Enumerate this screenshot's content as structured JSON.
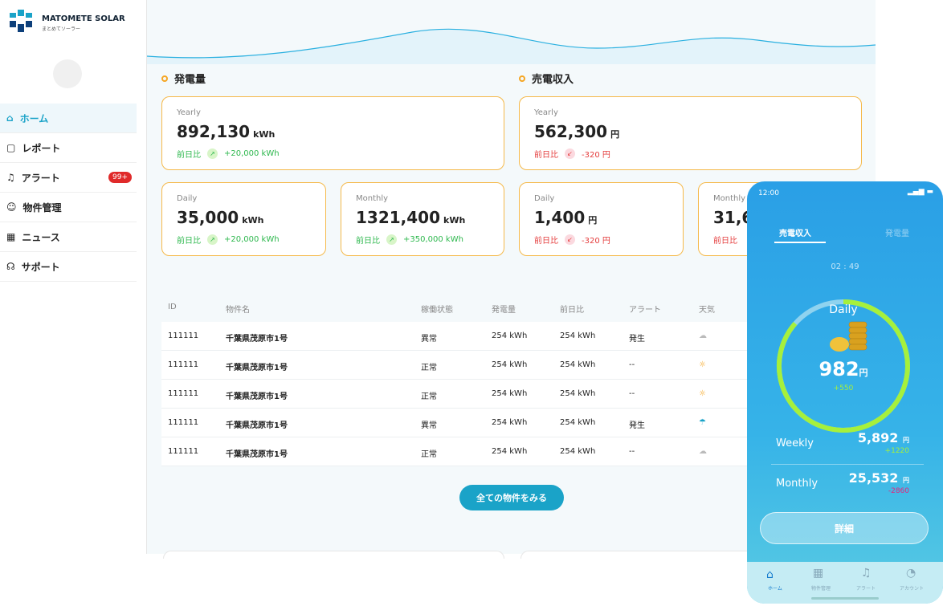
{
  "brand": {
    "name": "MATOMETE SOLAR",
    "sub": "まとめてソーラー"
  },
  "nav": [
    {
      "label": "ホーム"
    },
    {
      "label": "レポート"
    },
    {
      "label": "アラート",
      "badge": "99+"
    },
    {
      "label": "物件管理"
    },
    {
      "label": "ニュース"
    },
    {
      "label": "サポート"
    }
  ],
  "power": {
    "title": "発電量",
    "cards": [
      {
        "period": "Yearly",
        "value": "892,130",
        "unit": "kWh",
        "compare": "前日比",
        "delta": "+20,000 kWh"
      },
      {
        "period": "Daily",
        "value": "35,000",
        "unit": "kWh",
        "compare": "前日比",
        "delta": "+20,000 kWh"
      },
      {
        "period": "Monthly",
        "value": "1321,400",
        "unit": "kWh",
        "compare": "前日比",
        "delta": "+350,000 kWh"
      }
    ]
  },
  "revenue": {
    "title": "売電収入",
    "cards": [
      {
        "period": "Yearly",
        "value": "562,300",
        "unit": "円",
        "compare": "前日比",
        "delta": "-320 円"
      },
      {
        "period": "Daily",
        "value": "1,400",
        "unit": "円",
        "compare": "前日比",
        "delta": "-320 円"
      },
      {
        "period": "Monthly",
        "value": "31,6",
        "compare": "前日比"
      }
    ]
  },
  "table": {
    "columns": [
      "ID",
      "物件名",
      "稼働状態",
      "発電量",
      "前日比",
      "アラート",
      "天気"
    ],
    "rows": [
      [
        "111111",
        "千葉県茂原市1号",
        "異常",
        "254 kWh",
        "254 kWh",
        "発生"
      ],
      [
        "111111",
        "千葉県茂原市1号",
        "正常",
        "254 kWh",
        "254 kWh",
        "--"
      ],
      [
        "111111",
        "千葉県茂原市1号",
        "正常",
        "254 kWh",
        "254 kWh",
        "--"
      ],
      [
        "111111",
        "千葉県茂原市1号",
        "異常",
        "254 kWh",
        "254 kWh",
        "発生"
      ],
      [
        "111111",
        "千葉県茂原市1号",
        "正常",
        "254 kWh",
        "254 kWh",
        "--"
      ]
    ]
  },
  "button": "全ての物件をみる",
  "phone": {
    "time": "12:00",
    "tabs": [
      "売電収入",
      "発電量"
    ],
    "timer": "02 : 49",
    "daily": {
      "label": "Daily",
      "value": "982",
      "unit": "円",
      "delta": "+550"
    },
    "weekly": {
      "label": "Weekly",
      "value": "5,892",
      "unit": "円",
      "delta": "+1220"
    },
    "monthly": {
      "label": "Monthly",
      "value": "25,532",
      "unit": "円",
      "delta": "-2860"
    },
    "detail": "詳細",
    "bottom_nav": [
      "ホーム",
      "物件管理",
      "アラート",
      "アカウント"
    ]
  }
}
